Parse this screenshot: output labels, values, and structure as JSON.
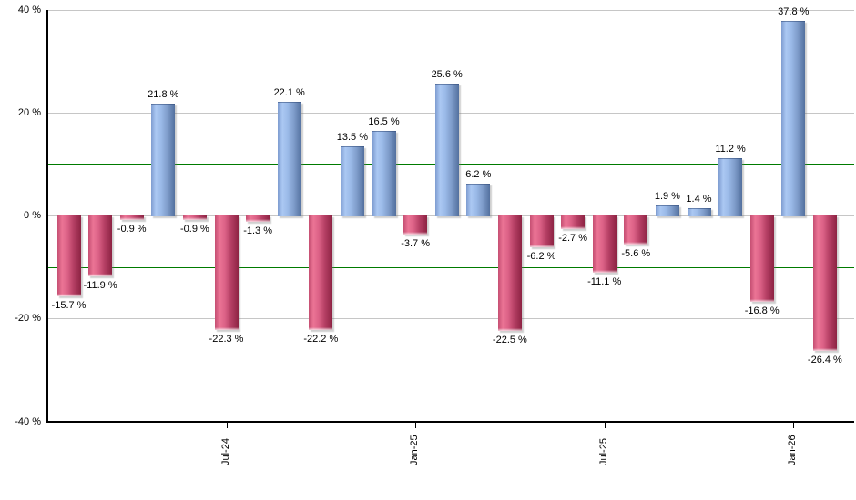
{
  "chart_data": {
    "type": "bar",
    "title": "",
    "xlabel": "",
    "ylabel": "",
    "unit": "%",
    "ylim": [
      -40,
      40
    ],
    "grid": true,
    "legend": "none",
    "bars": [
      {
        "value": -15.7,
        "label": "-15.7 %"
      },
      {
        "value": -11.9,
        "label": "-11.9 %"
      },
      {
        "value": -0.9,
        "label": "-0.9 %"
      },
      {
        "value": 21.8,
        "label": "21.8 %"
      },
      {
        "value": -0.9,
        "label": "-0.9 %"
      },
      {
        "value": -22.3,
        "label": "-22.3 %"
      },
      {
        "value": -1.3,
        "label": "-1.3 %"
      },
      {
        "value": 22.1,
        "label": "22.1 %"
      },
      {
        "value": -22.2,
        "label": "-22.2 %"
      },
      {
        "value": 13.5,
        "label": "13.5 %"
      },
      {
        "value": 16.5,
        "label": "16.5 %"
      },
      {
        "value": -3.7,
        "label": "-3.7 %"
      },
      {
        "value": 25.6,
        "label": "25.6 %"
      },
      {
        "value": 6.2,
        "label": "6.2 %"
      },
      {
        "value": -22.5,
        "label": "-22.5 %"
      },
      {
        "value": -6.2,
        "label": "-6.2 %"
      },
      {
        "value": -2.7,
        "label": "-2.7 %"
      },
      {
        "value": -11.1,
        "label": "-11.1 %"
      },
      {
        "value": -5.6,
        "label": "-5.6 %"
      },
      {
        "value": 1.9,
        "label": "1.9 %"
      },
      {
        "value": 1.4,
        "label": "1.4 %"
      },
      {
        "value": 11.2,
        "label": "11.2 %"
      },
      {
        "value": -16.8,
        "label": "-16.8 %"
      },
      {
        "value": 37.8,
        "label": "37.8 %"
      },
      {
        "value": -26.4,
        "label": "-26.4 %"
      }
    ],
    "x_ticks": [
      {
        "index": 5,
        "label": "Jul-24"
      },
      {
        "index": 11,
        "label": "Jan-25"
      },
      {
        "index": 17,
        "label": "Jul-25"
      },
      {
        "index": 23,
        "label": "Jan-26"
      }
    ],
    "y_ticks": [
      {
        "value": 40,
        "label": "40 %"
      },
      {
        "value": 20,
        "label": "20 %"
      },
      {
        "value": 0,
        "label": "0 %"
      },
      {
        "value": -20,
        "label": "-20 %"
      },
      {
        "value": -40,
        "label": "-40 %"
      }
    ],
    "threshold_lines": [
      10,
      -10
    ],
    "colors": {
      "positive_light": "#abc8f3",
      "positive_dark": "#53709e",
      "negative_light": "#eb7495",
      "negative_dark": "#8d2343",
      "gridline": "#c6c6c6",
      "threshold": "#007b00",
      "axis": "#000000",
      "background": "#ffffff"
    }
  }
}
